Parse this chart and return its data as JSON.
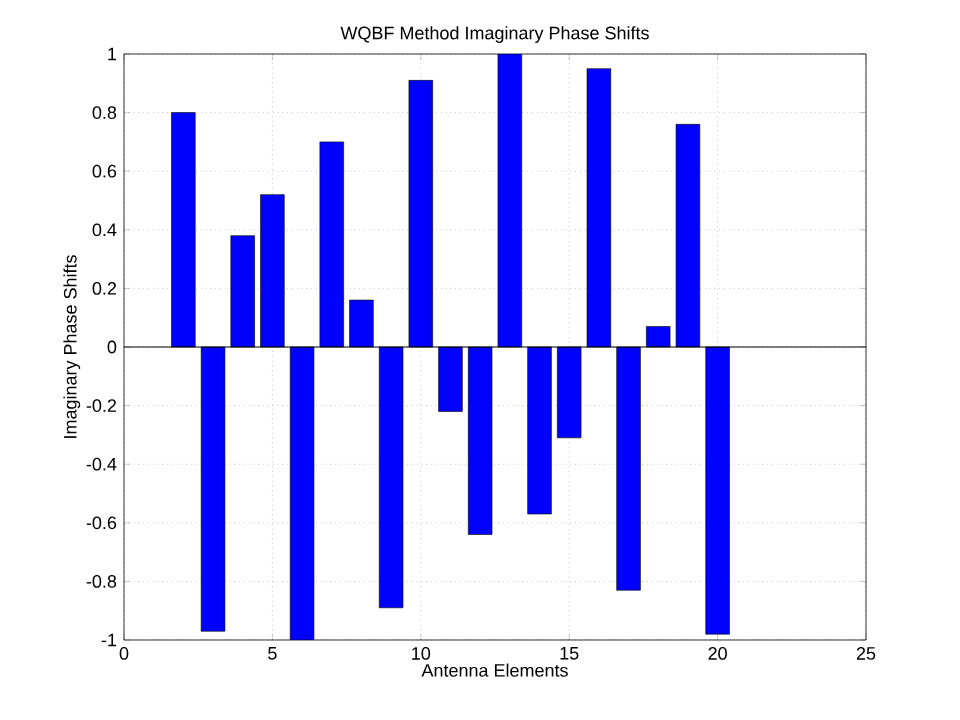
{
  "chart_data": {
    "type": "bar",
    "title": "WQBF Method Imaginary Phase Shifts",
    "xlabel": "Antenna Elements",
    "ylabel": "Imaginary Phase Shifts",
    "x": [
      2,
      3,
      4,
      5,
      6,
      7,
      8,
      9,
      10,
      11,
      12,
      13,
      14,
      15,
      16,
      17,
      18,
      19,
      20
    ],
    "values": [
      0.8,
      -0.97,
      0.38,
      0.52,
      -1.0,
      0.7,
      0.16,
      -0.89,
      0.91,
      -0.22,
      -0.64,
      1.0,
      -0.57,
      -0.31,
      0.95,
      -0.83,
      0.07,
      0.76,
      -0.98
    ],
    "color": "#0000ff",
    "xlim": [
      0,
      25
    ],
    "ylim": [
      -1,
      1
    ],
    "xticks": [
      0,
      5,
      10,
      15,
      20,
      25
    ],
    "yticks": [
      -1,
      -0.8,
      -0.6,
      -0.4,
      -0.2,
      0,
      0.2,
      0.4,
      0.6,
      0.8,
      1
    ],
    "grid": true,
    "ref_lines": [
      {
        "axis": "y",
        "value": 0
      }
    ]
  }
}
